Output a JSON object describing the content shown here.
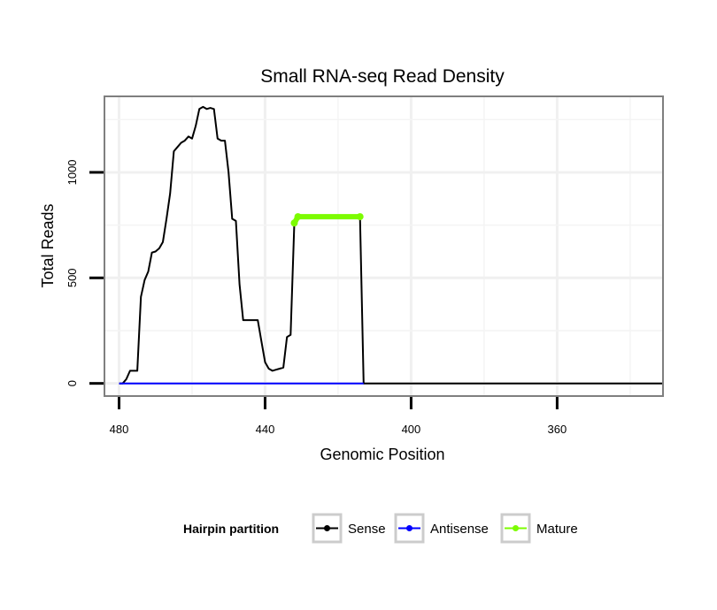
{
  "chart_data": {
    "type": "line",
    "title": "Small RNA-seq Read Density",
    "xlabel": "Genomic Position",
    "ylabel": "Total Reads",
    "x_reversed": true,
    "xlim": [
      484,
      331
    ],
    "ylim": [
      -60,
      1360
    ],
    "x_ticks": [
      480,
      440,
      400,
      360
    ],
    "x_tick_labels": [
      "480",
      "440",
      "400",
      "360"
    ],
    "y_ticks": [
      0,
      500,
      1000
    ],
    "y_tick_labels": [
      "0",
      "500",
      "1000"
    ],
    "grid": true,
    "legend": {
      "title": "Hairpin partition",
      "position": "bottom",
      "entries": [
        "Sense",
        "Antisense",
        "Mature"
      ]
    },
    "series": [
      {
        "name": "Sense",
        "color": "#000000",
        "points": [
          [
            480,
            0
          ],
          [
            479,
            0
          ],
          [
            478,
            20
          ],
          [
            477,
            60
          ],
          [
            475,
            60
          ],
          [
            474,
            410
          ],
          [
            473,
            490
          ],
          [
            472,
            530
          ],
          [
            471,
            620
          ],
          [
            470,
            625
          ],
          [
            469,
            640
          ],
          [
            468,
            670
          ],
          [
            467,
            780
          ],
          [
            466,
            900
          ],
          [
            465,
            1100
          ],
          [
            464,
            1120
          ],
          [
            463,
            1140
          ],
          [
            462,
            1150
          ],
          [
            461,
            1170
          ],
          [
            460,
            1160
          ],
          [
            459,
            1220
          ],
          [
            458,
            1300
          ],
          [
            457,
            1310
          ],
          [
            456,
            1300
          ],
          [
            455,
            1305
          ],
          [
            454,
            1300
          ],
          [
            453,
            1160
          ],
          [
            452,
            1150
          ],
          [
            451,
            1150
          ],
          [
            450,
            1000
          ],
          [
            449,
            780
          ],
          [
            448,
            770
          ],
          [
            447,
            470
          ],
          [
            446,
            300
          ],
          [
            445,
            300
          ],
          [
            442,
            300
          ],
          [
            441,
            200
          ],
          [
            440,
            100
          ],
          [
            439,
            70
          ],
          [
            438,
            60
          ],
          [
            437,
            65
          ],
          [
            436,
            70
          ],
          [
            435,
            75
          ],
          [
            434,
            220
          ],
          [
            433,
            230
          ],
          [
            432,
            760
          ],
          [
            431,
            790
          ],
          [
            414,
            790
          ],
          [
            413,
            0
          ],
          [
            331,
            0
          ]
        ]
      },
      {
        "name": "Antisense",
        "color": "#0000ff",
        "points": [
          [
            480,
            0
          ],
          [
            413,
            0
          ]
        ]
      },
      {
        "name": "Mature",
        "color": "#7cfc00",
        "points": [
          [
            432,
            760
          ],
          [
            431,
            790
          ],
          [
            414,
            790
          ]
        ]
      }
    ]
  }
}
